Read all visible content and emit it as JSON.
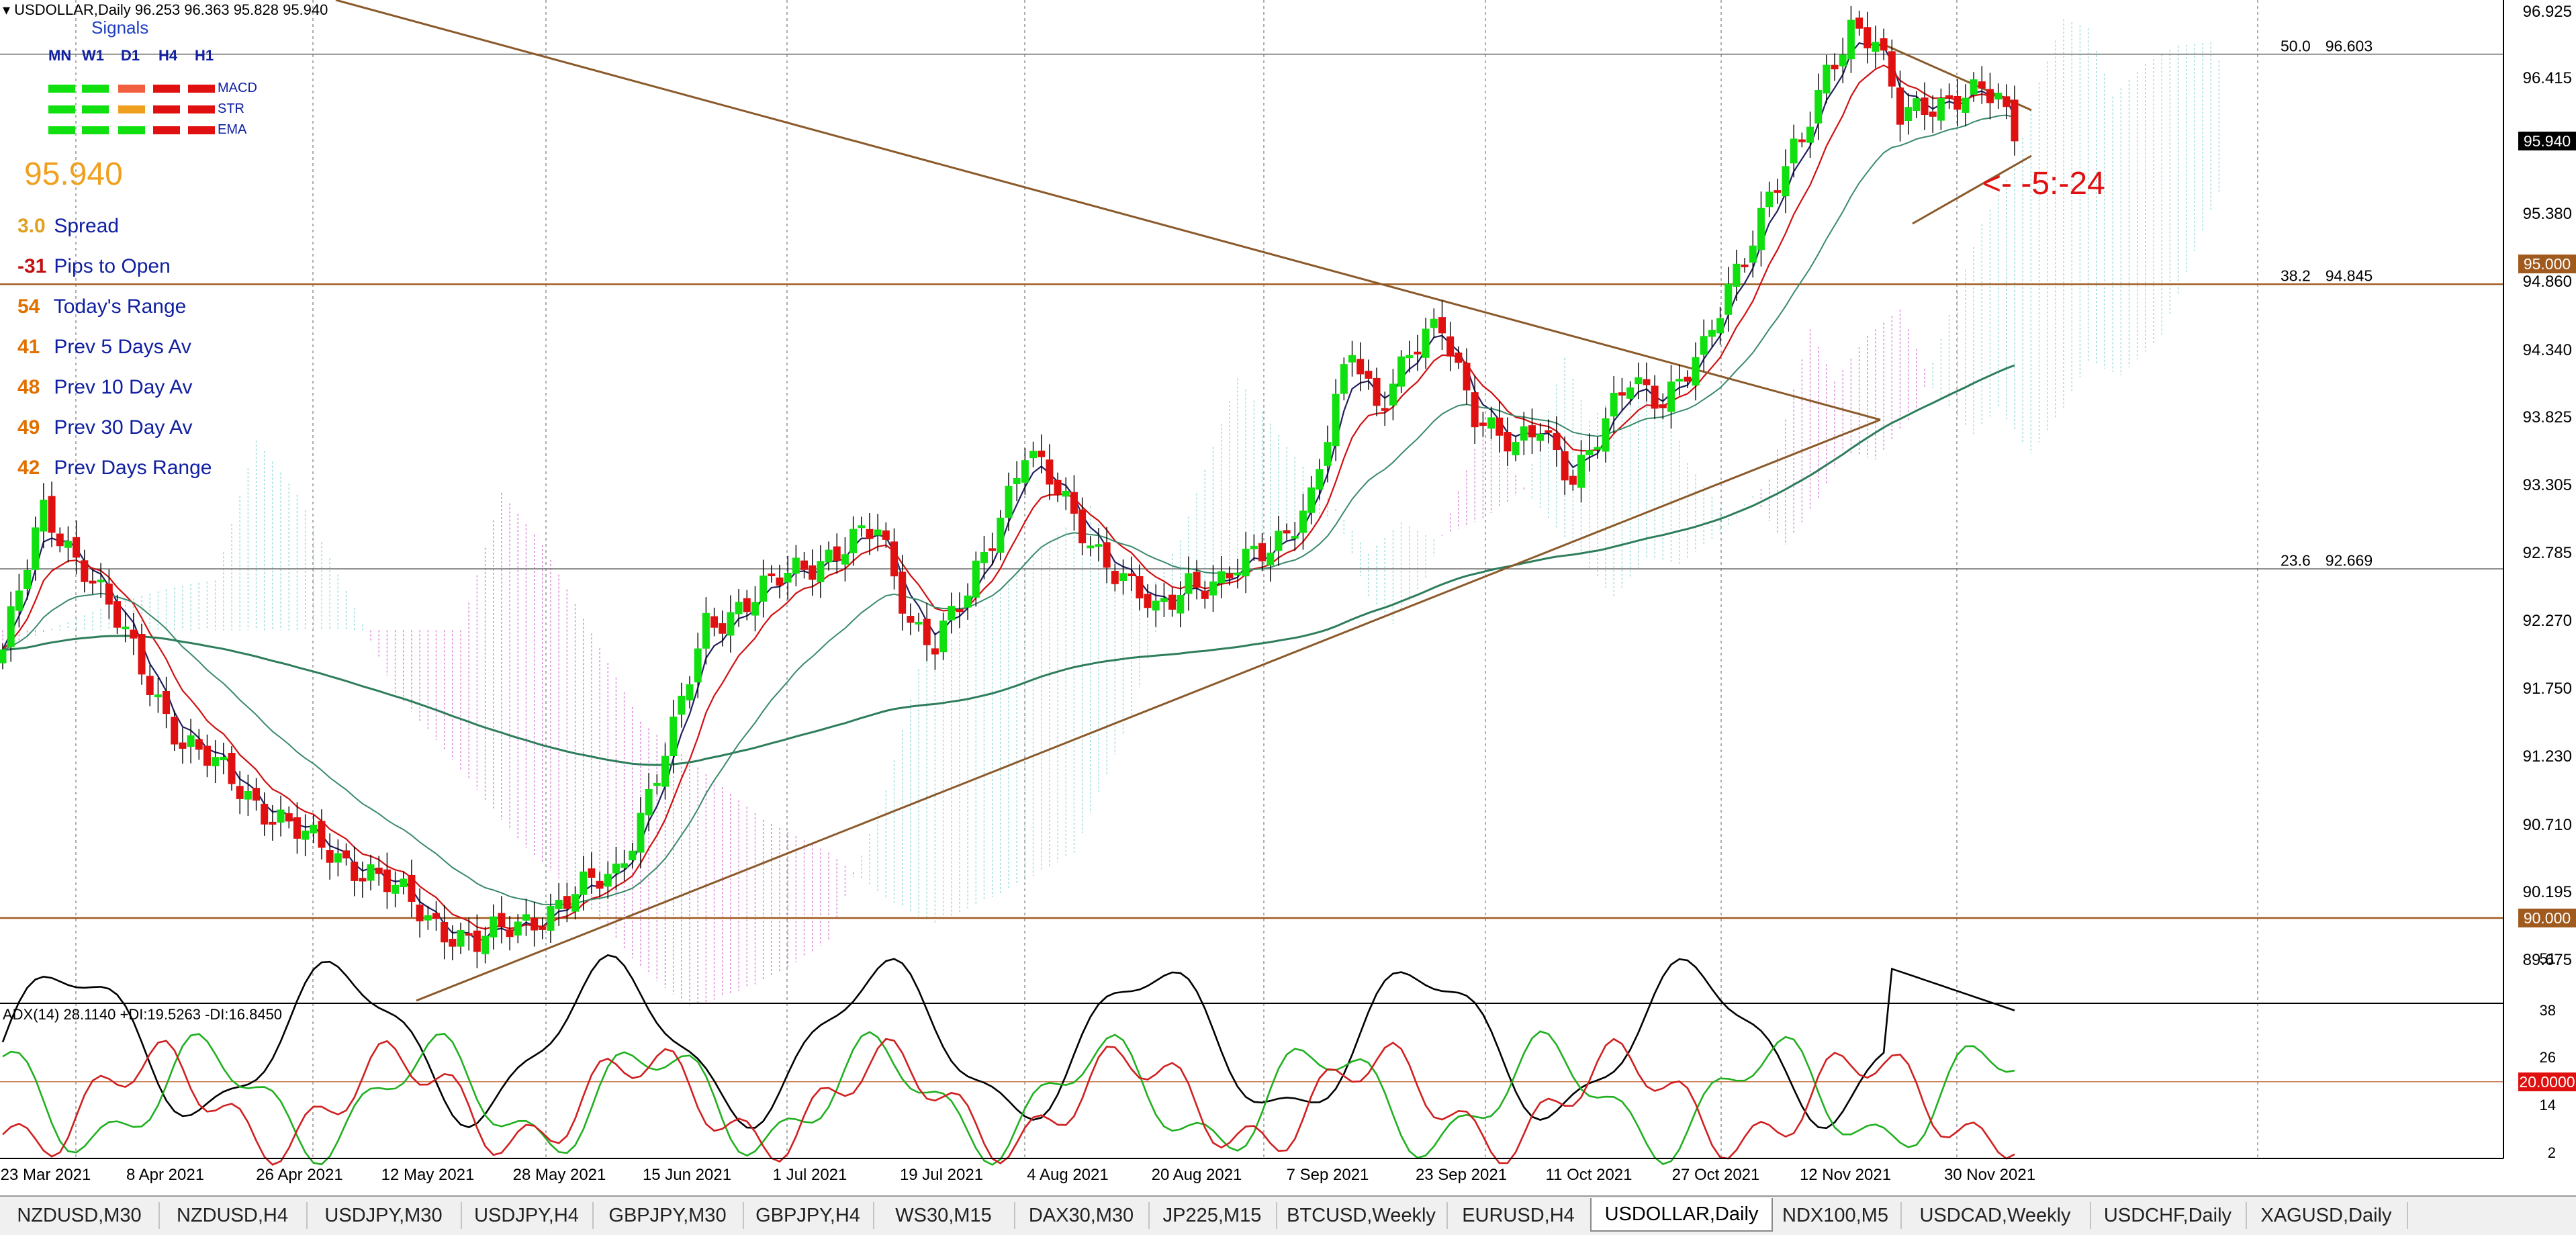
{
  "header": {
    "symbol_info": "USDOLLAR,Daily  96.253 96.363 95.828 95.940",
    "collapse_icon": "triangle-down-icon"
  },
  "signals": {
    "title": "Signals",
    "timeframes": [
      "MN",
      "W1",
      "D1",
      "H4",
      "H1"
    ],
    "rows": [
      {
        "label": "MACD",
        "states": [
          "green",
          "green",
          "salmon",
          "red",
          "red"
        ]
      },
      {
        "label": "STR",
        "states": [
          "green",
          "green",
          "orange",
          "red",
          "red"
        ]
      },
      {
        "label": "EMA",
        "states": [
          "green",
          "green",
          "green",
          "red",
          "red"
        ]
      }
    ],
    "colors": {
      "green": "#10e010",
      "salmon": "#f06040",
      "orange": "#f0a020",
      "red": "#e01010"
    }
  },
  "current_price": "95.940",
  "stats": [
    {
      "value": "3.0",
      "label": "Spread"
    },
    {
      "value": "-31",
      "label": "Pips to Open"
    },
    {
      "value": "54",
      "label": "Today's Range"
    },
    {
      "value": "41",
      "label": "Prev 5 Days Av"
    },
    {
      "value": "48",
      "label": "Prev 10 Day Av"
    },
    {
      "value": "49",
      "label": "Prev 30 Day Av"
    },
    {
      "value": "42",
      "label": "Prev Days Range"
    }
  ],
  "annotation": "<- -5:-24",
  "price_axis": {
    "labels": [
      "96.925",
      "96.415",
      "95.380",
      "94.860",
      "94.340",
      "93.825",
      "93.305",
      "92.785",
      "92.270",
      "91.750",
      "91.230",
      "90.710",
      "90.195",
      "89.675"
    ],
    "current_tag": "95.940",
    "level_tags": [
      "95.000",
      "90.000"
    ]
  },
  "fibonacci": [
    {
      "ratio": "50.0",
      "price": "96.603"
    },
    {
      "ratio": "38.2",
      "price": "94.845"
    },
    {
      "ratio": "23.6",
      "price": "92.669"
    }
  ],
  "adx": {
    "header": "ADX(14) 28.1140 +DI:19.5263 -DI:16.8450",
    "axis_labels": [
      "51",
      "38",
      "26",
      "14",
      "2"
    ],
    "level_tag": "20.0000"
  },
  "dates": [
    "23 Mar 2021",
    "8 Apr 2021",
    "26 Apr 2021",
    "12 May 2021",
    "28 May 2021",
    "15 Jun 2021",
    "1 Jul 2021",
    "19 Jul 2021",
    "4 Aug 2021",
    "20 Aug 2021",
    "7 Sep 2021",
    "23 Sep 2021",
    "11 Oct 2021",
    "27 Oct 2021",
    "12 Nov 2021",
    "30 Nov 2021"
  ],
  "tabs": [
    {
      "label": "NZDUSD,M30"
    },
    {
      "label": "NZDUSD,H4"
    },
    {
      "label": "USDJPY,M30"
    },
    {
      "label": "USDJPY,H4"
    },
    {
      "label": "GBPJPY,M30"
    },
    {
      "label": "GBPJPY,H4"
    },
    {
      "label": "WS30,M15"
    },
    {
      "label": "DAX30,M30"
    },
    {
      "label": "JP225,M15"
    },
    {
      "label": "BTCUSD,Weekly"
    },
    {
      "label": "EURUSD,H4"
    },
    {
      "label": "USDOLLAR,Daily",
      "active": true
    },
    {
      "label": "NDX100,M5"
    },
    {
      "label": "USDCAD,Weekly"
    },
    {
      "label": "USDCHF,Daily"
    },
    {
      "label": "XAGUSD,Daily"
    }
  ],
  "colors": {
    "bull": "#10e010",
    "bear": "#e01010",
    "trendline": "#8b5a2b",
    "level": "#a05a1e",
    "ema_fast": "#d01010",
    "ema_mid": "#202060",
    "ema_slow": "#3a8a6a",
    "ma200": "#2e7d5b",
    "cloud_up": "#7fd0d0",
    "cloud_down": "#d060d0",
    "adx": "#000000",
    "plus_di": "#20b020",
    "minus_di": "#d02020"
  }
}
